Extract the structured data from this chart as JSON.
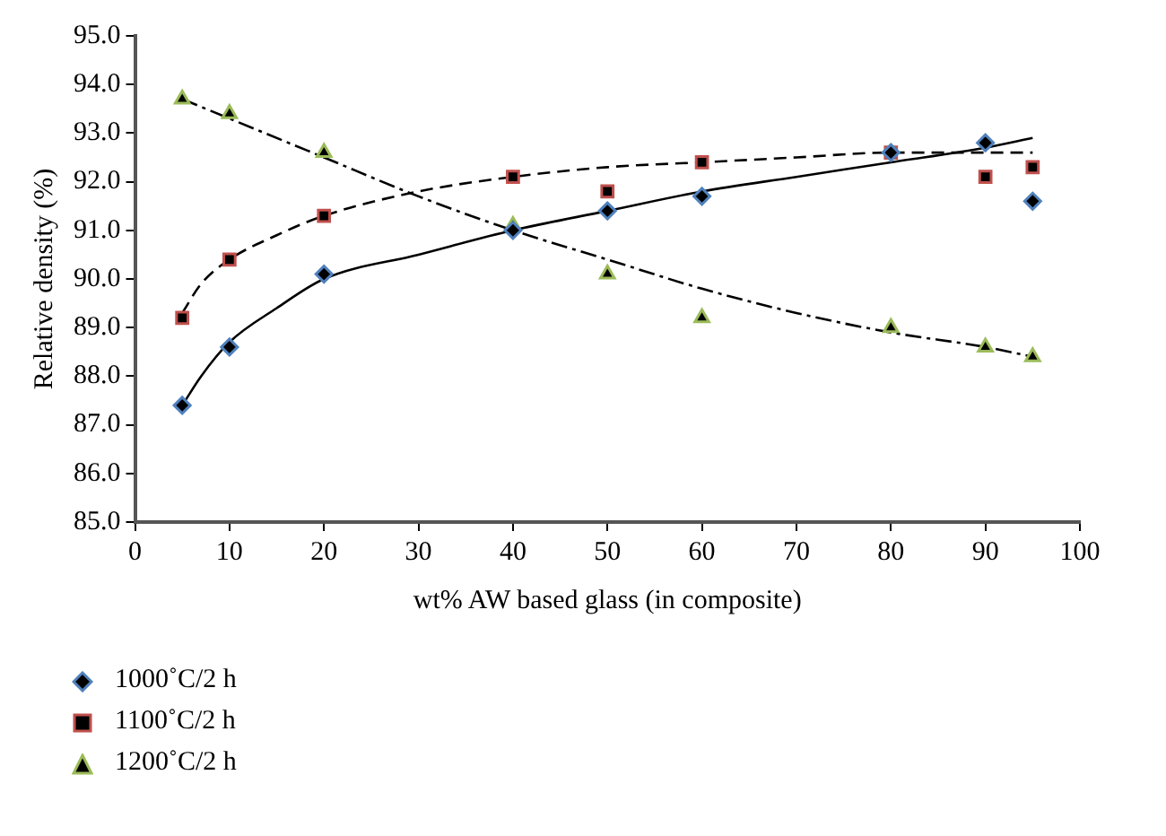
{
  "chart_data": {
    "type": "scatter",
    "xlabel": "wt% AW based glass (in composite)",
    "ylabel": "Relative density (%)",
    "xlim": [
      0,
      100
    ],
    "xticks": [
      0,
      10,
      20,
      30,
      40,
      50,
      60,
      70,
      80,
      90,
      100
    ],
    "ylim": [
      85,
      95
    ],
    "yticks": [
      {
        "value": 85,
        "label": "85.0"
      },
      {
        "value": 86,
        "label": "86.0"
      },
      {
        "value": 87,
        "label": "87.0"
      },
      {
        "value": 88,
        "label": "88.0"
      },
      {
        "value": 89,
        "label": "89.0"
      },
      {
        "value": 90,
        "label": "90.0"
      },
      {
        "value": 91,
        "label": "91.0"
      },
      {
        "value": 92,
        "label": "92.0"
      },
      {
        "value": 93,
        "label": "93.0"
      },
      {
        "value": 94,
        "label": "94.0"
      },
      {
        "value": 95,
        "label": "95.0"
      }
    ],
    "grid": false,
    "legend": "bottom left",
    "series": [
      {
        "name": "1000˚C/2 h",
        "marker": "diamond",
        "color": "#4f81bd",
        "x": [
          5,
          10,
          20,
          40,
          50,
          60,
          80,
          90,
          95
        ],
        "values": [
          87.4,
          88.6,
          90.1,
          91.0,
          91.4,
          91.7,
          92.6,
          92.8,
          91.6
        ]
      },
      {
        "name": "1100˚C/2 h",
        "marker": "square",
        "color": "#c0504d",
        "x": [
          5,
          10,
          20,
          40,
          50,
          60,
          80,
          90,
          95
        ],
        "values": [
          89.2,
          90.4,
          91.3,
          92.1,
          91.8,
          92.4,
          92.6,
          92.1,
          92.3
        ]
      },
      {
        "name": "1200˚C/2 h",
        "marker": "triangle",
        "color": "#9bbb59",
        "x": [
          5,
          10,
          20,
          40,
          50,
          60,
          80,
          90,
          95
        ],
        "values": [
          93.7,
          93.4,
          92.6,
          91.1,
          90.1,
          89.2,
          89.0,
          88.6,
          88.4
        ]
      },
      {
        "type": "line",
        "marker": "none",
        "line_style": "solid",
        "color": "#000000",
        "x": [
          5,
          7,
          10,
          15,
          20,
          30,
          40,
          50,
          60,
          70,
          80,
          90,
          95
        ],
        "values": [
          87.4,
          88.0,
          88.7,
          89.4,
          90.0,
          90.5,
          91.0,
          91.4,
          91.8,
          92.1,
          92.4,
          92.7,
          92.9
        ]
      },
      {
        "type": "line",
        "marker": "none",
        "line_style": "dashed",
        "color": "#000000",
        "x": [
          5,
          7,
          10,
          15,
          20,
          30,
          40,
          50,
          60,
          70,
          80,
          90,
          95
        ],
        "values": [
          89.3,
          89.9,
          90.4,
          90.9,
          91.3,
          91.8,
          92.1,
          92.3,
          92.4,
          92.5,
          92.6,
          92.6,
          92.6
        ]
      },
      {
        "type": "line",
        "marker": "none",
        "line_style": "dashdot",
        "color": "#000000",
        "x": [
          5,
          10,
          20,
          30,
          40,
          50,
          60,
          70,
          80,
          90,
          95
        ],
        "values": [
          93.7,
          93.3,
          92.5,
          91.7,
          91.0,
          90.4,
          89.8,
          89.3,
          88.9,
          88.6,
          88.4
        ]
      }
    ]
  }
}
